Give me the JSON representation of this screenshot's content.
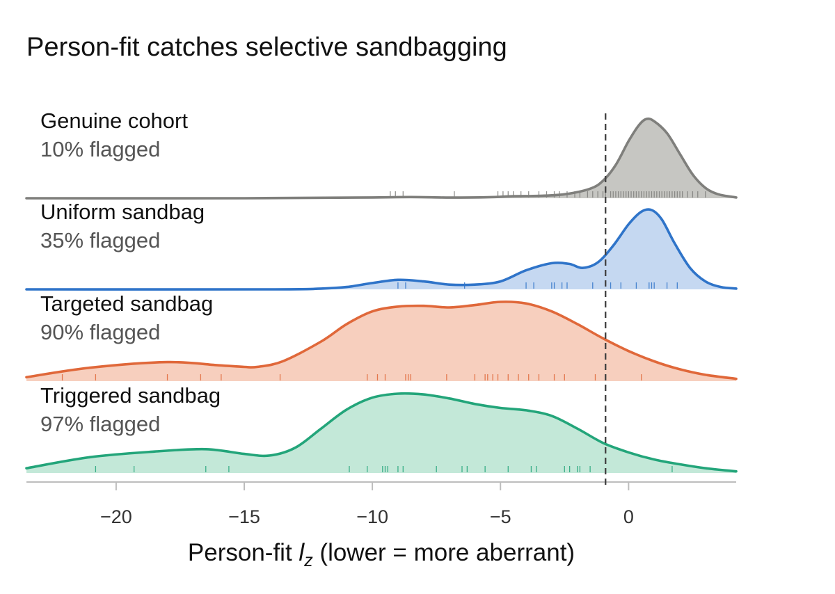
{
  "chart_data": {
    "type": "area",
    "title": "Person-fit catches selective sandbagging",
    "xlabel_parts": [
      "Person-fit ",
      "l",
      "z",
      " (lower = more aberrant)"
    ],
    "xlim": [
      -23.5,
      4.2
    ],
    "xticks": [
      -20,
      -15,
      -10,
      -5,
      0
    ],
    "xtick_labels": [
      "−20",
      "−15",
      "−10",
      "−5",
      "0"
    ],
    "threshold": -0.9,
    "series": [
      {
        "name": "Genuine cohort",
        "stat": "10% flagged",
        "color": "#7f7f7c",
        "fill": "#c6c6c2",
        "curve": [
          [
            -23.5,
            0.0
          ],
          [
            -15,
            0.0
          ],
          [
            -10,
            0.01
          ],
          [
            -8.5,
            0.015
          ],
          [
            -7,
            0.008
          ],
          [
            -5.5,
            0.012
          ],
          [
            -4.5,
            0.025
          ],
          [
            -3.5,
            0.03
          ],
          [
            -2.5,
            0.05
          ],
          [
            -1.5,
            0.12
          ],
          [
            -1.0,
            0.22
          ],
          [
            -0.5,
            0.42
          ],
          [
            0.0,
            0.72
          ],
          [
            0.4,
            0.92
          ],
          [
            0.7,
            1.0
          ],
          [
            1.0,
            0.97
          ],
          [
            1.5,
            0.82
          ],
          [
            2.0,
            0.56
          ],
          [
            2.5,
            0.3
          ],
          [
            3.0,
            0.13
          ],
          [
            3.5,
            0.05
          ],
          [
            4.2,
            0.01
          ]
        ],
        "rug": [
          -9.3,
          -9.1,
          -8.8,
          -6.8,
          -5.1,
          -4.9,
          -4.7,
          -4.5,
          -4.2,
          -3.9,
          -3.5,
          -3.2,
          -2.9,
          -2.7,
          -2.4,
          -2.1,
          -1.9,
          -1.6,
          -1.4,
          -1.2,
          -1.0,
          -0.9,
          -0.7,
          -0.6,
          -0.5,
          -0.4,
          -0.3,
          -0.2,
          -0.1,
          0.0,
          0.1,
          0.2,
          0.3,
          0.4,
          0.5,
          0.6,
          0.7,
          0.8,
          0.9,
          1.0,
          1.1,
          1.2,
          1.3,
          1.4,
          1.5,
          1.6,
          1.7,
          1.8,
          1.9,
          2.0,
          2.1,
          2.3,
          2.5,
          2.7,
          3.0
        ]
      },
      {
        "name": "Uniform sandbag",
        "stat": "35% flagged",
        "color": "#2f74c9",
        "fill": "#c5d8f1",
        "curve": [
          [
            -23.5,
            0.0
          ],
          [
            -14,
            0.0
          ],
          [
            -12,
            0.01
          ],
          [
            -11,
            0.03
          ],
          [
            -10,
            0.08
          ],
          [
            -9,
            0.12
          ],
          [
            -8,
            0.1
          ],
          [
            -7,
            0.06
          ],
          [
            -6,
            0.06
          ],
          [
            -5,
            0.1
          ],
          [
            -4,
            0.24
          ],
          [
            -3,
            0.33
          ],
          [
            -2.3,
            0.32
          ],
          [
            -1.8,
            0.27
          ],
          [
            -1.2,
            0.34
          ],
          [
            -0.6,
            0.55
          ],
          [
            0.0,
            0.82
          ],
          [
            0.5,
            0.98
          ],
          [
            0.9,
            1.0
          ],
          [
            1.3,
            0.88
          ],
          [
            1.8,
            0.58
          ],
          [
            2.4,
            0.27
          ],
          [
            3.0,
            0.1
          ],
          [
            3.6,
            0.03
          ],
          [
            4.2,
            0.01
          ]
        ],
        "rug": [
          -9.0,
          -8.7,
          -6.4,
          -4.0,
          -3.7,
          -3.0,
          -2.9,
          -2.6,
          -2.4,
          -1.4,
          -0.7,
          -0.3,
          0.3,
          0.8,
          0.9,
          1.0,
          1.5,
          1.9
        ]
      },
      {
        "name": "Targeted sandbag",
        "stat": "90% flagged",
        "color": "#e0683a",
        "fill": "#f7cfbe",
        "curve": [
          [
            -23.5,
            0.05
          ],
          [
            -21,
            0.17
          ],
          [
            -18,
            0.24
          ],
          [
            -16,
            0.2
          ],
          [
            -15,
            0.18
          ],
          [
            -14.5,
            0.18
          ],
          [
            -13.5,
            0.25
          ],
          [
            -12,
            0.5
          ],
          [
            -11,
            0.72
          ],
          [
            -10,
            0.88
          ],
          [
            -9,
            0.94
          ],
          [
            -8,
            0.95
          ],
          [
            -7,
            0.93
          ],
          [
            -6,
            0.96
          ],
          [
            -5,
            1.0
          ],
          [
            -4,
            0.98
          ],
          [
            -3,
            0.88
          ],
          [
            -2,
            0.72
          ],
          [
            -1,
            0.54
          ],
          [
            0,
            0.38
          ],
          [
            1,
            0.25
          ],
          [
            2,
            0.15
          ],
          [
            3,
            0.08
          ],
          [
            4.2,
            0.03
          ]
        ],
        "rug": [
          -22.1,
          -20.8,
          -18.0,
          -16.7,
          -15.9,
          -13.6,
          -10.2,
          -9.8,
          -9.5,
          -8.7,
          -8.6,
          -8.5,
          -7.1,
          -6.0,
          -5.6,
          -5.5,
          -5.3,
          -5.1,
          -4.7,
          -4.3,
          -3.9,
          -3.5,
          -2.9,
          -2.5,
          -1.3,
          0.5
        ]
      },
      {
        "name": "Triggered sandbag",
        "stat": "97% flagged",
        "color": "#23a57a",
        "fill": "#c3e8d8",
        "curve": [
          [
            -23.5,
            0.06
          ],
          [
            -21,
            0.2
          ],
          [
            -18.5,
            0.27
          ],
          [
            -16.5,
            0.3
          ],
          [
            -15,
            0.24
          ],
          [
            -14,
            0.22
          ],
          [
            -13,
            0.32
          ],
          [
            -12,
            0.56
          ],
          [
            -11,
            0.8
          ],
          [
            -10,
            0.95
          ],
          [
            -9,
            1.0
          ],
          [
            -8,
            0.99
          ],
          [
            -7,
            0.94
          ],
          [
            -6,
            0.87
          ],
          [
            -5,
            0.82
          ],
          [
            -4,
            0.79
          ],
          [
            -3,
            0.72
          ],
          [
            -2,
            0.56
          ],
          [
            -1,
            0.38
          ],
          [
            0,
            0.26
          ],
          [
            1,
            0.17
          ],
          [
            2,
            0.11
          ],
          [
            3,
            0.06
          ],
          [
            4.2,
            0.02
          ]
        ],
        "rug": [
          -20.8,
          -19.3,
          -16.5,
          -15.6,
          -10.9,
          -10.2,
          -9.6,
          -9.5,
          -9.4,
          -9.0,
          -8.8,
          -7.5,
          -6.5,
          -6.3,
          -5.6,
          -4.7,
          -3.8,
          -3.6,
          -2.5,
          -2.3,
          -2.0,
          -1.9,
          -1.5,
          1.7
        ]
      }
    ]
  }
}
